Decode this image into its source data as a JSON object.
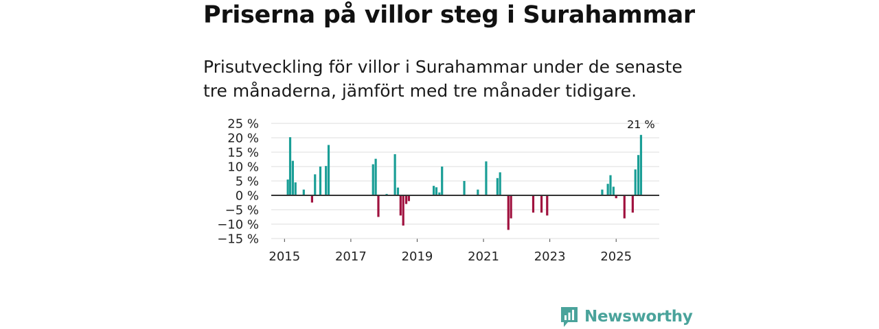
{
  "header": {
    "title": "Priserna på villor steg i Surahammar",
    "subtitle_line1": "Prisutveckling för villor i Surahammar under de senaste",
    "subtitle_line2": "tre månaderna, jämfört med tre månader tidigare."
  },
  "logo": {
    "text": "Newsworthy",
    "icon": "newsworthy-logo-icon"
  },
  "colors": {
    "positive": "#1a9e96",
    "negative": "#a0123f",
    "grid": "#dddddd",
    "zero": "#333333"
  },
  "chart_data": {
    "type": "bar",
    "title": "Priserna på villor steg i Surahammar",
    "xlabel": "",
    "ylabel": "",
    "xlim": [
      2014.6,
      2026.3
    ],
    "ylim": [
      -15,
      25
    ],
    "yticks": [
      -15,
      -10,
      -5,
      0,
      5,
      10,
      15,
      20,
      25
    ],
    "ytick_labels": [
      "−15 %",
      "−10 %",
      "−5 %",
      "0 %",
      "5 %",
      "10 %",
      "15 %",
      "20 %",
      "25 %"
    ],
    "xticks": [
      2015,
      2017,
      2019,
      2021,
      2023,
      2025
    ],
    "xtick_labels": [
      "2015",
      "2017",
      "2019",
      "2021",
      "2023",
      "2025"
    ],
    "grid": true,
    "unit": "%",
    "annotation": {
      "label": "21 %",
      "x": 2025.75,
      "value": 21
    },
    "x": [
      2015.1,
      2015.17,
      2015.25,
      2015.33,
      2015.58,
      2015.83,
      2015.92,
      2016.08,
      2016.25,
      2016.33,
      2017.67,
      2017.75,
      2017.83,
      2018.08,
      2018.33,
      2018.42,
      2018.5,
      2018.58,
      2018.67,
      2018.75,
      2019.5,
      2019.58,
      2019.67,
      2019.75,
      2020.42,
      2020.83,
      2021.08,
      2021.42,
      2021.5,
      2021.75,
      2021.83,
      2022.5,
      2022.75,
      2022.92,
      2024.58,
      2024.75,
      2024.83,
      2024.92,
      2025.0,
      2025.25,
      2025.5,
      2025.58,
      2025.67,
      2025.75
    ],
    "values": [
      5.5,
      20.2,
      12,
      4.5,
      2,
      -2.5,
      7.3,
      10,
      10.2,
      17.5,
      10.8,
      12.7,
      -7.5,
      0.5,
      14.3,
      2.7,
      -7,
      -10.5,
      -3,
      -2,
      3.3,
      2.8,
      1,
      10,
      5,
      2,
      11.8,
      6,
      8,
      -12,
      -8,
      -6,
      -6,
      -7,
      2,
      4,
      7,
      3,
      -1,
      -8,
      -6,
      9,
      14,
      21
    ]
  }
}
